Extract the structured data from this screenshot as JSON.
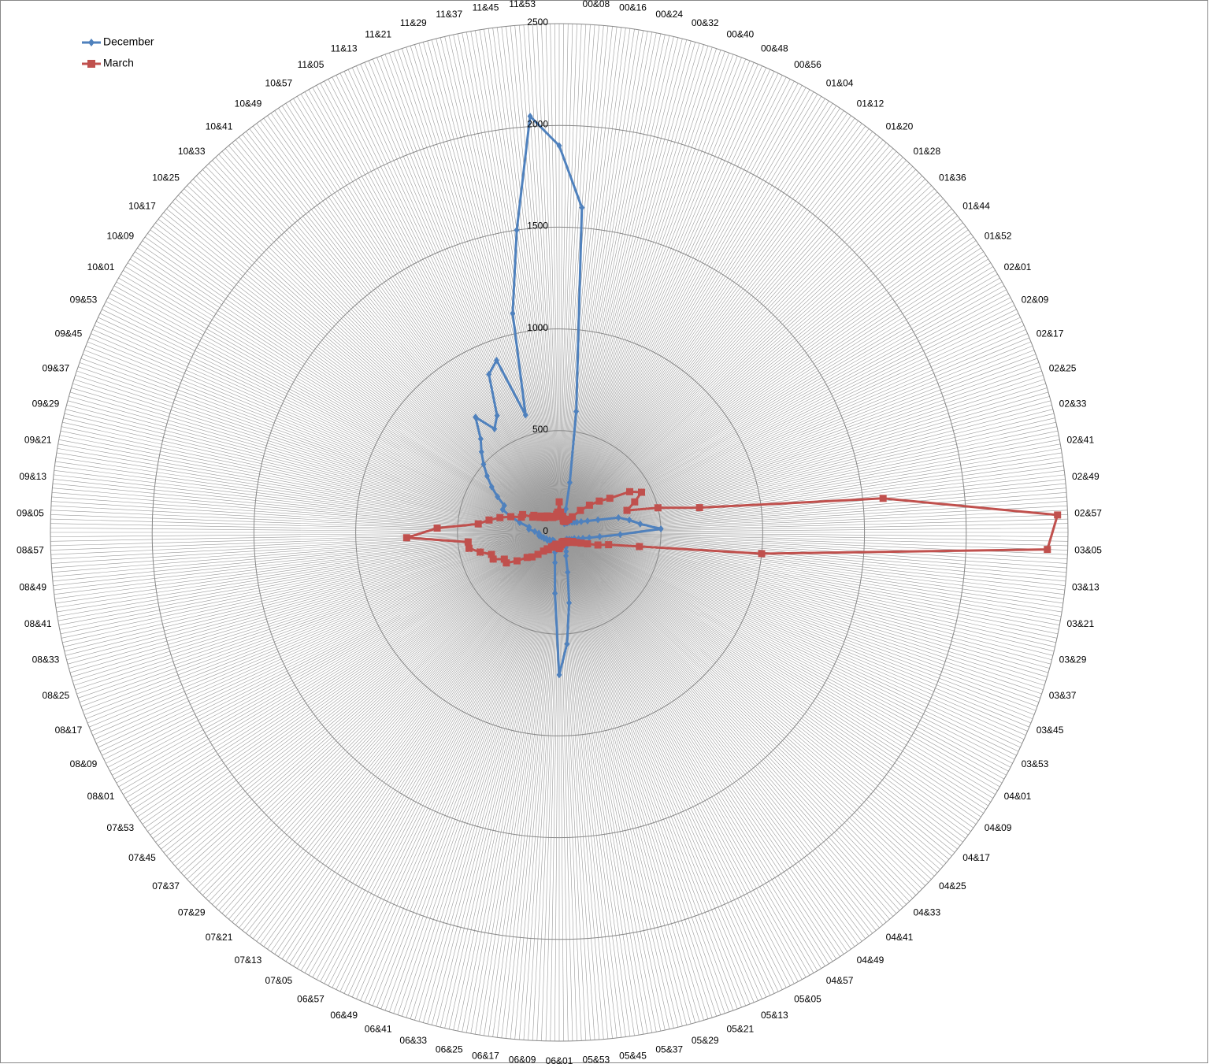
{
  "chart_data": {
    "type": "radar",
    "categories": [
      null,
      "00&08",
      "00&16",
      "00&24",
      "00&32",
      "00&40",
      "00&48",
      "00&56",
      "01&04",
      "01&12",
      "01&20",
      "01&28",
      "01&36",
      "01&44",
      "01&52",
      "02&01",
      "02&09",
      "02&17",
      "02&25",
      "02&33",
      "02&41",
      "02&49",
      "02&57",
      "03&05",
      "03&13",
      "03&21",
      "03&29",
      "03&37",
      "03&45",
      "03&53",
      "04&01",
      "04&09",
      "04&17",
      "04&25",
      "04&33",
      "04&41",
      "04&49",
      "04&57",
      "05&05",
      "05&13",
      "05&21",
      "05&29",
      "05&37",
      "05&45",
      "05&53",
      "06&01",
      "06&09",
      "06&17",
      "06&25",
      "06&33",
      "06&41",
      "06&49",
      "06&57",
      "07&05",
      "07&13",
      "07&21",
      "07&29",
      "07&37",
      "07&45",
      "07&53",
      "08&01",
      "08&09",
      "08&17",
      "08&25",
      "08&33",
      "08&41",
      "08&49",
      "08&57",
      "09&05",
      "09&13",
      "09&21",
      "09&29",
      "09&37",
      "09&45",
      "09&53",
      "10&01",
      "10&09",
      "10&17",
      "10&25",
      "10&33",
      "10&41",
      "10&49",
      "10&57",
      "11&05",
      "11&13",
      "11&21",
      "11&29",
      "11&37",
      "11&45",
      "11&53"
    ],
    "series": [
      {
        "name": "December",
        "color": "#4f81bd",
        "marker": "diamond",
        "values": [
          1900,
          1600,
          600,
          250,
          120,
          80,
          60,
          50,
          50,
          60,
          60,
          70,
          80,
          80,
          90,
          100,
          120,
          150,
          200,
          300,
          350,
          400,
          500,
          300,
          200,
          150,
          120,
          100,
          80,
          80,
          70,
          60,
          60,
          50,
          50,
          50,
          60,
          60,
          70,
          80,
          100,
          120,
          200,
          350,
          550,
          700,
          300,
          150,
          100,
          80,
          60,
          60,
          50,
          50,
          50,
          50,
          60,
          60,
          60,
          70,
          70,
          70,
          80,
          80,
          90,
          100,
          100,
          100,
          120,
          150,
          150,
          200,
          250,
          300,
          300,
          350,
          400,
          450,
          500,
          550,
          600,
          700,
          600,
          650,
          850,
          900,
          600,
          1100,
          1500,
          2050
        ]
      },
      {
        "name": "March",
        "color": "#c0504d",
        "marker": "square",
        "values": [
          150,
          100,
          80,
          80,
          70,
          60,
          60,
          60,
          70,
          80,
          100,
          150,
          200,
          250,
          300,
          400,
          450,
          400,
          350,
          500,
          700,
          1600,
          2450,
          2400,
          1000,
          400,
          250,
          200,
          150,
          120,
          100,
          80,
          80,
          70,
          60,
          60,
          60,
          60,
          50,
          50,
          50,
          50,
          60,
          60,
          70,
          80,
          70,
          60,
          60,
          60,
          70,
          80,
          80,
          100,
          100,
          120,
          150,
          180,
          200,
          250,
          300,
          300,
          350,
          350,
          400,
          450,
          450,
          750,
          600,
          400,
          350,
          300,
          250,
          200,
          200,
          150,
          150,
          120,
          120,
          100,
          100,
          100,
          90,
          90,
          80,
          80,
          80,
          80,
          90,
          100
        ]
      }
    ],
    "ylim": [
      0,
      2500
    ],
    "yticks": [
      0,
      500,
      1000,
      1500,
      2000,
      2500
    ],
    "grid": true,
    "legend": "top-left"
  }
}
